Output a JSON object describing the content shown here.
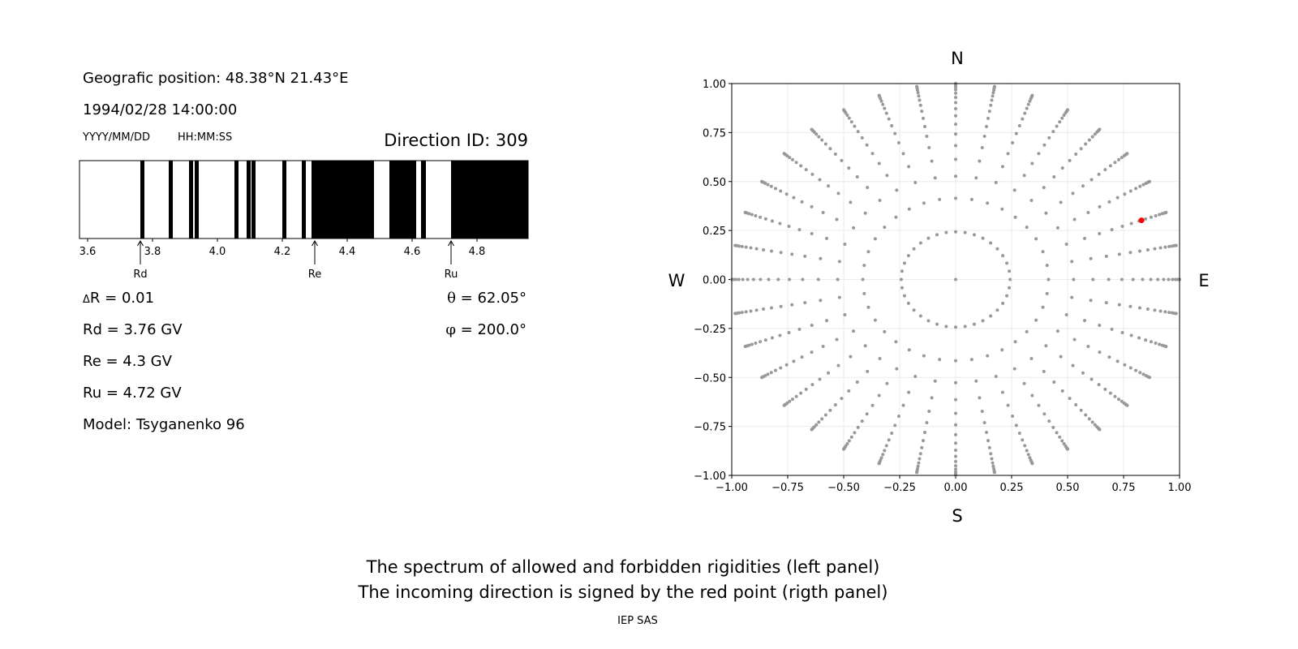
{
  "info": {
    "position": "Geografic position: 48.38°N 21.43°E",
    "datetime": "1994/02/28 14:00:00",
    "date_format": "YYYY/MM/DD",
    "time_format": "HH:MM:SS",
    "direction_id": "Direction ID: 309",
    "delta_r_symbol": "Δ",
    "delta_r": "R = 0.01",
    "rd": "Rd = 3.76 GV",
    "re": "Re = 4.3 GV",
    "ru": "Ru = 4.72 GV",
    "model": "Model: Tsyganenko 96",
    "theta_symbol": "θ",
    "theta": " = 62.05°",
    "phi_symbol": "φ",
    "phi": " = 200.0°"
  },
  "captions": {
    "line1": "The spectrum of allowed and forbidden rigidities (left panel)",
    "line2": "The incoming direction is signed by the red point (rigth panel)",
    "credit": "IEP SAS"
  },
  "chart_data": [
    {
      "type": "bar",
      "description_kind": "rigidity spectrum (black = forbidden, white = allowed)",
      "xlim": [
        3.575,
        4.9575
      ],
      "xticks": [
        3.6,
        3.8,
        4.0,
        4.2,
        4.4,
        4.6,
        4.8
      ],
      "xtick_labels": [
        "3.6",
        "3.8",
        "4.0",
        "4.2",
        "4.4",
        "4.6",
        "4.8"
      ],
      "forbidden_intervals": [
        [
          3.7625,
          3.775
        ],
        [
          3.85,
          3.8625
        ],
        [
          3.9125,
          3.925
        ],
        [
          3.93,
          3.9425
        ],
        [
          4.0525,
          4.065
        ],
        [
          4.09,
          4.1025
        ],
        [
          4.105,
          4.1175
        ],
        [
          4.2,
          4.2125
        ],
        [
          4.26,
          4.2725
        ],
        [
          4.29,
          4.4825
        ],
        [
          4.53,
          4.6125
        ],
        [
          4.6275,
          4.6425
        ],
        [
          4.72,
          4.9575
        ]
      ],
      "markers": [
        {
          "label": "Rd",
          "value": 3.7625
        },
        {
          "label": "Re",
          "value": 4.3
        },
        {
          "label": "Ru",
          "value": 4.72
        }
      ],
      "colors": {
        "forbidden": "#000000",
        "allowed": "#ffffff"
      }
    },
    {
      "type": "scatter",
      "xlim": [
        -1,
        1
      ],
      "ylim": [
        -1,
        1
      ],
      "ticks": [
        -1.0,
        -0.75,
        -0.5,
        -0.25,
        0.0,
        0.25,
        0.5,
        0.75,
        1.0
      ],
      "tick_labels": [
        "−1.00",
        "−0.75",
        "−0.50",
        "−0.25",
        "0.00",
        "0.25",
        "0.50",
        "0.75",
        "1.00"
      ],
      "grid": true,
      "compass": {
        "north": "N",
        "south": "S",
        "west": "W",
        "east": "E"
      },
      "grid_points": {
        "phi_step_deg": 10,
        "cos_theta_values": [
          1.0,
          0.97,
          0.91,
          0.85,
          0.79,
          0.73,
          0.67,
          0.61,
          0.55,
          0.49,
          0.43,
          0.37,
          0.31,
          0.25,
          0.19,
          0.13,
          0.07,
          0.01
        ],
        "color": "#999999"
      },
      "highlight": {
        "theta_deg": 62.05,
        "phi_deg": 200.0,
        "x": 0.83,
        "y": 0.302,
        "color": "#ff0000"
      }
    }
  ]
}
